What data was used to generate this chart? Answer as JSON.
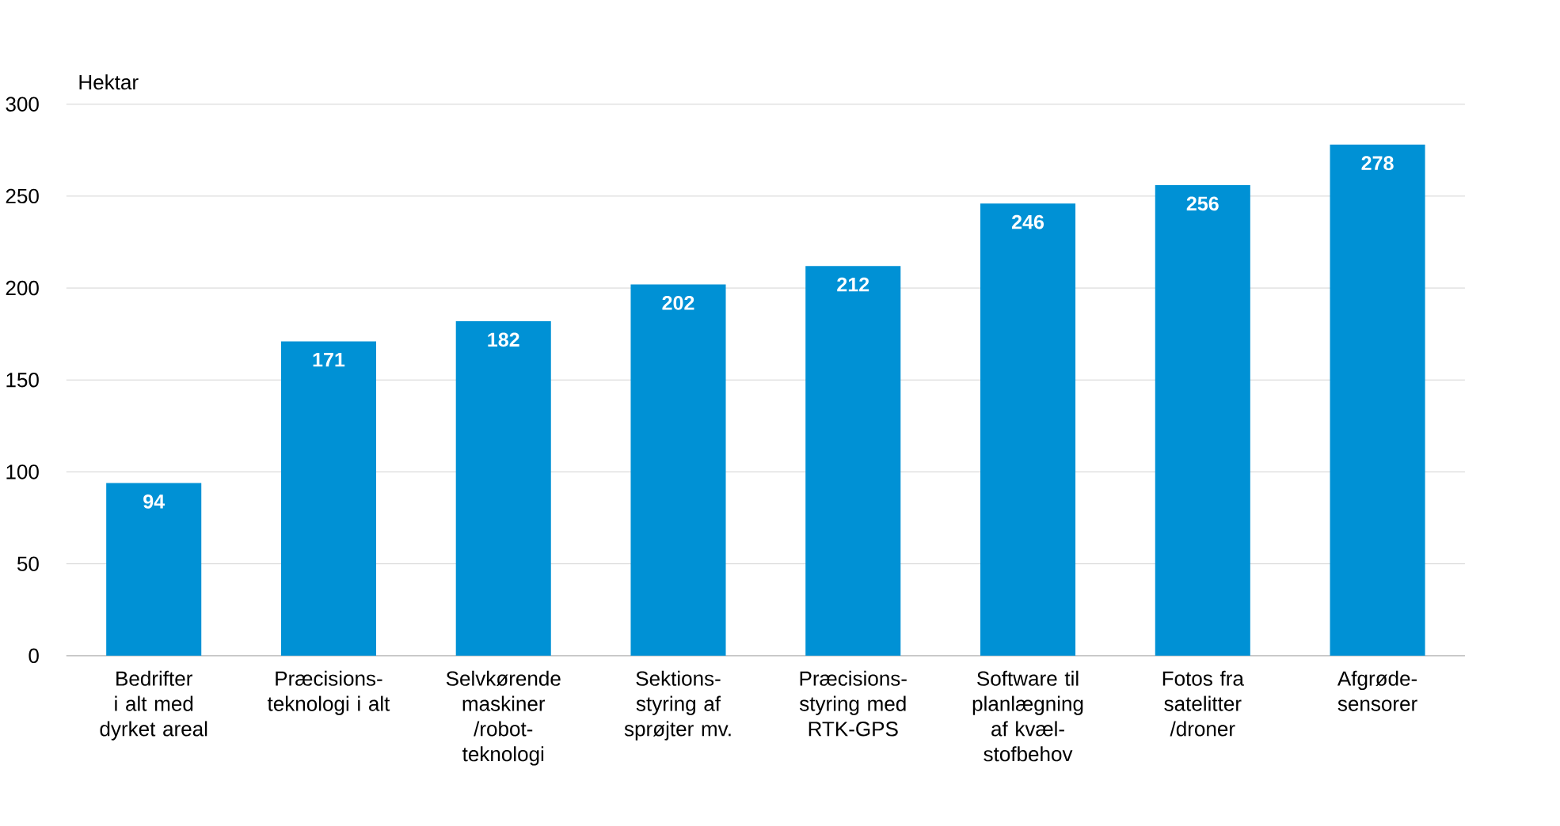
{
  "chart_data": {
    "type": "bar",
    "ylabel": "Hektar",
    "categories": [
      "Bedrifter i alt med dyrket areal",
      "Præcisions-teknologi i alt",
      "Selvkørende maskiner /robot-teknologi",
      "Sektions-styring af sprøjter mv.",
      "Præcisions-styring med RTK-GPS",
      "Software til planlægning af kvæl-stofbehov",
      "Fotos fra satelitter /droner",
      "Afgrøde-sensorer"
    ],
    "values": [
      94,
      171,
      182,
      202,
      212,
      246,
      256,
      278
    ],
    "color": "#0091d5",
    "ylim": [
      0,
      300
    ],
    "yticks": [
      0,
      50,
      100,
      150,
      200,
      250,
      300
    ],
    "grid": "y",
    "data_labels": true
  }
}
